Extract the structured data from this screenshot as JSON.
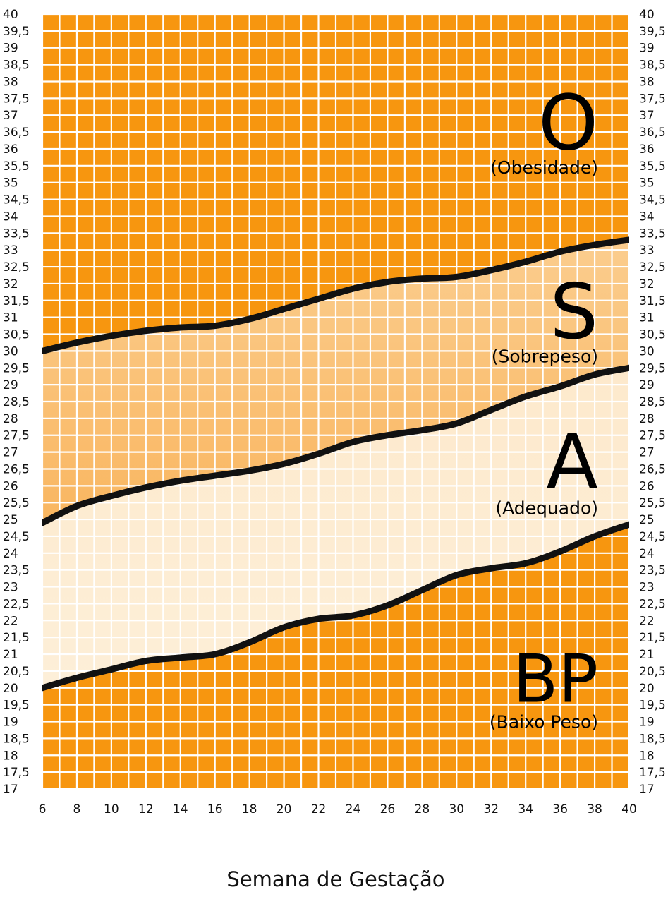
{
  "chart_data": {
    "type": "area",
    "title": "",
    "xlabel": "Semana de Gestação",
    "ylabel": "",
    "xlim": [
      6,
      40
    ],
    "ylim": [
      17,
      40
    ],
    "grid": true,
    "x_ticks": [
      6,
      8,
      10,
      12,
      14,
      16,
      18,
      20,
      22,
      24,
      26,
      28,
      30,
      32,
      34,
      36,
      38,
      40
    ],
    "y_ticks": [
      "17",
      "17,5",
      "18",
      "18,5",
      "19",
      "19,5",
      "20",
      "20,5",
      "21",
      "21,5",
      "22",
      "22,5",
      "23",
      "23,5",
      "24",
      "24,5",
      "25",
      "25,5",
      "26",
      "26,5",
      "27",
      "27,5",
      "28",
      "28,5",
      "29",
      "29,5",
      "30",
      "30,5",
      "31",
      "31,5",
      "32",
      "32,5",
      "33",
      "33,5",
      "34",
      "34,5",
      "35",
      "35,5",
      "36",
      "36,5",
      "37",
      "37,5",
      "38",
      "38,5",
      "39",
      "39,5",
      "40"
    ],
    "y_tick_values": [
      17,
      17.5,
      18,
      18.5,
      19,
      19.5,
      20,
      20.5,
      21,
      21.5,
      22,
      22.5,
      23,
      23.5,
      24,
      24.5,
      25,
      25.5,
      26,
      26.5,
      27,
      27.5,
      28,
      28.5,
      29,
      29.5,
      30,
      30.5,
      31,
      31.5,
      32,
      32.5,
      33,
      33.5,
      34,
      34.5,
      35,
      35.5,
      36,
      36.5,
      37,
      37.5,
      38,
      38.5,
      39,
      39.5,
      40
    ],
    "x": [
      6,
      8,
      10,
      12,
      14,
      16,
      18,
      20,
      22,
      24,
      26,
      28,
      30,
      32,
      34,
      36,
      38,
      40
    ],
    "series": [
      {
        "key": "obesidade",
        "values": [
          30.0,
          30.25,
          30.45,
          30.6,
          30.7,
          30.75,
          30.95,
          31.25,
          31.55,
          31.85,
          32.05,
          32.15,
          32.2,
          32.4,
          32.65,
          32.95,
          33.15,
          33.3
        ]
      },
      {
        "key": "sobrepeso",
        "values": [
          24.9,
          25.4,
          25.7,
          25.95,
          26.15,
          26.3,
          26.45,
          26.65,
          26.95,
          27.3,
          27.5,
          27.65,
          27.85,
          28.25,
          28.65,
          28.95,
          29.3,
          29.5
        ]
      },
      {
        "key": "adequado",
        "values": [
          20.0,
          20.3,
          20.55,
          20.8,
          20.9,
          21.0,
          21.35,
          21.8,
          22.05,
          22.15,
          22.45,
          22.9,
          23.35,
          23.55,
          23.7,
          24.05,
          24.5,
          24.85
        ]
      }
    ],
    "zones": [
      {
        "letter": "O",
        "name": "(Obesidade)",
        "letter_y": 36.8,
        "name_y": 35.45
      },
      {
        "letter": "S",
        "name": "(Sobrepeso)",
        "letter_y": 31.2,
        "name_y": 29.85
      },
      {
        "letter": "A",
        "name": "(Adequado)",
        "letter_y": 26.75,
        "name_y": 25.35
      },
      {
        "letter": "BP",
        "name": "(Baixo Peso)",
        "letter_y": 20.3,
        "name_y": 19.0
      }
    ],
    "colors": {
      "orange": "#f7960f",
      "light_orange": "#fbcd8e",
      "cream": "#fdefd8",
      "grid": "#ffffff",
      "line": "#111111"
    }
  }
}
